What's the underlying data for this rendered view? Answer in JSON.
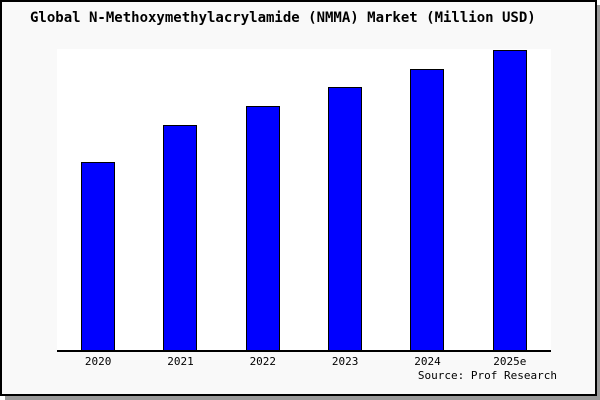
{
  "window": {
    "background_color": "#f9f9f9",
    "frame_border_color": "#000000",
    "shadow_color": "#9a9a9a"
  },
  "chart_data": {
    "type": "bar",
    "title": "Global N-Methoxymethylacrylamide (NMMA) Market (Million USD)",
    "categories": [
      "2020",
      "2021",
      "2022",
      "2023",
      "2024",
      "2025e"
    ],
    "values": [
      62.5,
      74.8,
      81.1,
      87.4,
      93.4,
      99.7
    ],
    "value_note": "no y-axis or data labels shown; values estimated from bar heights on a 0-100 relative scale",
    "xlabel": "",
    "ylabel": "",
    "ylim": [
      0,
      100
    ],
    "grid": false,
    "legend": false,
    "plot_background": "#ffffff",
    "bar_color": "#0000ff",
    "bar_border_color": "#000000",
    "axis_line_color": "#000000",
    "source_note": "Source: Prof Research"
  }
}
